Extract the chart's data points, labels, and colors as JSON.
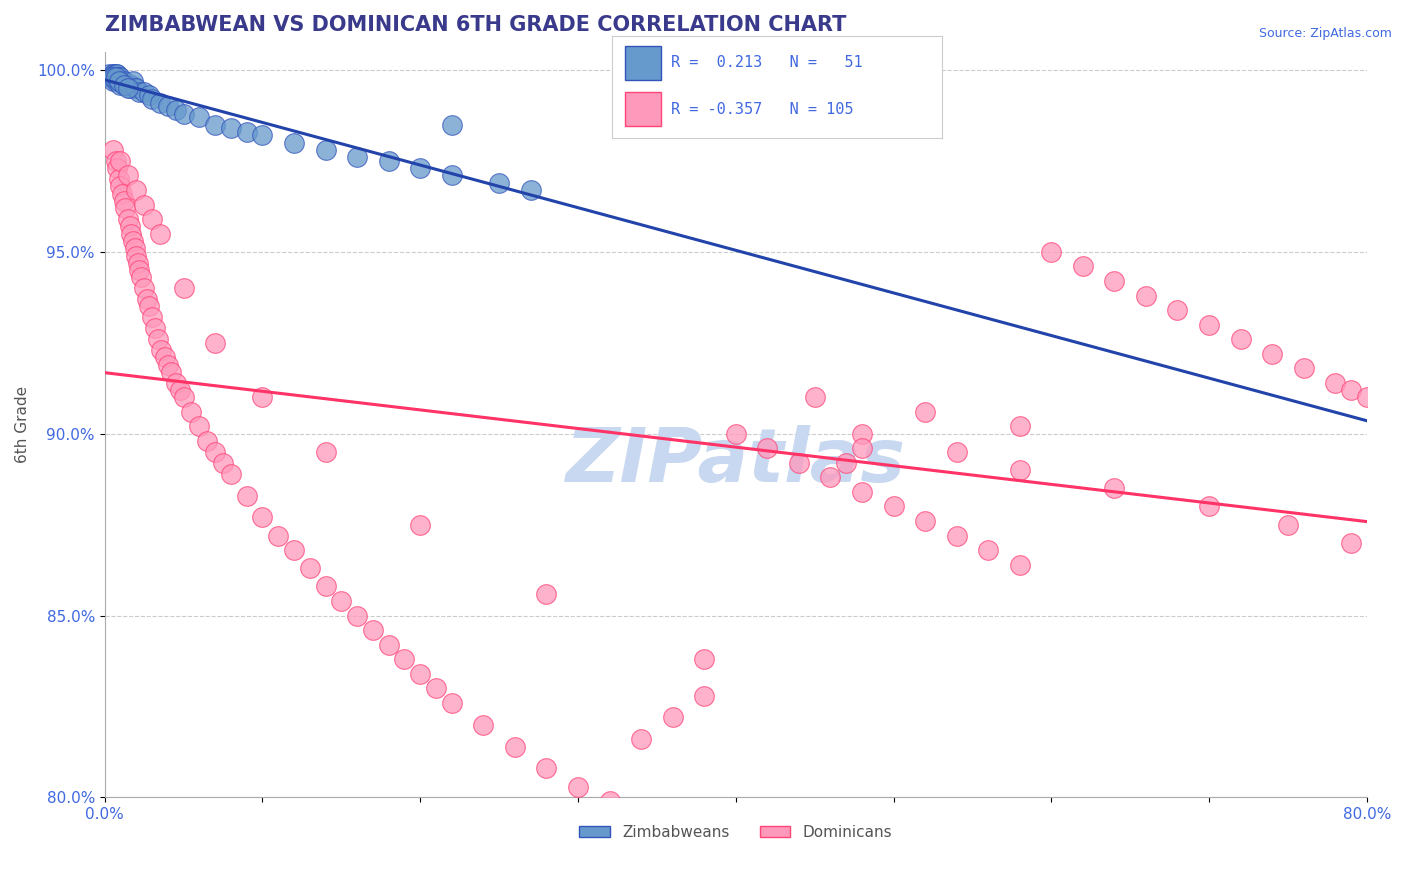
{
  "title": "ZIMBABWEAN VS DOMINICAN 6TH GRADE CORRELATION CHART",
  "source": "Source: ZipAtlas.com",
  "ylabel": "6th Grade",
  "x_min": 0.0,
  "x_max": 0.8,
  "y_min": 0.8,
  "y_max": 1.005,
  "x_ticks": [
    0.0,
    0.1,
    0.2,
    0.3,
    0.4,
    0.5,
    0.6,
    0.7,
    0.8
  ],
  "y_ticks": [
    0.8,
    0.85,
    0.9,
    0.95,
    1.0
  ],
  "y_tick_labels": [
    "80.0%",
    "85.0%",
    "90.0%",
    "95.0%",
    "100.0%"
  ],
  "grid_color": "#cccccc",
  "background_color": "#ffffff",
  "title_color": "#3a3a8c",
  "title_fontsize": 15,
  "axis_label_color": "#555555",
  "tick_label_color": "#4169e1",
  "source_color": "#4169e1",
  "zimbabwe_color": "#6699cc",
  "dominican_color": "#ff99bb",
  "zimbabwe_edge_color": "#3355bb",
  "dominican_edge_color": "#ff4477",
  "zimbabwe_line_color": "#2244aa",
  "dominican_line_color": "#ff3366",
  "watermark": "ZIPatlas",
  "watermark_color": "#c8d8f0",
  "legend_label1": "Zimbabweans",
  "legend_label2": "Dominicans",
  "zimbabwe_scatter_x": [
    0.003,
    0.004,
    0.005,
    0.005,
    0.006,
    0.006,
    0.007,
    0.007,
    0.008,
    0.008,
    0.009,
    0.009,
    0.01,
    0.01,
    0.011,
    0.012,
    0.013,
    0.014,
    0.015,
    0.016,
    0.017,
    0.018,
    0.019,
    0.02,
    0.022,
    0.025,
    0.028,
    0.03,
    0.035,
    0.04,
    0.045,
    0.05,
    0.06,
    0.07,
    0.08,
    0.09,
    0.1,
    0.12,
    0.14,
    0.16,
    0.18,
    0.2,
    0.22,
    0.25,
    0.27,
    0.005,
    0.007,
    0.009,
    0.012,
    0.015,
    0.22
  ],
  "zimbabwe_scatter_y": [
    0.999,
    0.998,
    0.999,
    0.997,
    0.999,
    0.998,
    0.999,
    0.997,
    0.999,
    0.998,
    0.998,
    0.997,
    0.998,
    0.996,
    0.997,
    0.997,
    0.996,
    0.996,
    0.996,
    0.995,
    0.996,
    0.997,
    0.995,
    0.995,
    0.994,
    0.994,
    0.993,
    0.992,
    0.991,
    0.99,
    0.989,
    0.988,
    0.987,
    0.985,
    0.984,
    0.983,
    0.982,
    0.98,
    0.978,
    0.976,
    0.975,
    0.973,
    0.971,
    0.969,
    0.967,
    0.998,
    0.998,
    0.997,
    0.996,
    0.995,
    0.985
  ],
  "dominican_scatter_x": [
    0.005,
    0.007,
    0.008,
    0.009,
    0.01,
    0.011,
    0.012,
    0.013,
    0.015,
    0.016,
    0.017,
    0.018,
    0.019,
    0.02,
    0.021,
    0.022,
    0.023,
    0.025,
    0.027,
    0.028,
    0.03,
    0.032,
    0.034,
    0.036,
    0.038,
    0.04,
    0.042,
    0.045,
    0.048,
    0.05,
    0.055,
    0.06,
    0.065,
    0.07,
    0.075,
    0.08,
    0.09,
    0.1,
    0.11,
    0.12,
    0.13,
    0.14,
    0.15,
    0.16,
    0.17,
    0.18,
    0.19,
    0.2,
    0.21,
    0.22,
    0.24,
    0.26,
    0.28,
    0.3,
    0.32,
    0.34,
    0.36,
    0.38,
    0.4,
    0.42,
    0.44,
    0.46,
    0.48,
    0.5,
    0.52,
    0.54,
    0.56,
    0.58,
    0.6,
    0.62,
    0.64,
    0.66,
    0.68,
    0.7,
    0.72,
    0.74,
    0.76,
    0.78,
    0.79,
    0.8,
    0.01,
    0.015,
    0.02,
    0.025,
    0.03,
    0.035,
    0.05,
    0.07,
    0.1,
    0.14,
    0.2,
    0.28,
    0.38,
    0.48,
    0.54,
    0.58,
    0.64,
    0.7,
    0.75,
    0.79,
    0.45,
    0.52,
    0.58,
    0.48,
    0.47
  ],
  "dominican_scatter_y": [
    0.978,
    0.975,
    0.973,
    0.97,
    0.968,
    0.966,
    0.964,
    0.962,
    0.959,
    0.957,
    0.955,
    0.953,
    0.951,
    0.949,
    0.947,
    0.945,
    0.943,
    0.94,
    0.937,
    0.935,
    0.932,
    0.929,
    0.926,
    0.923,
    0.921,
    0.919,
    0.917,
    0.914,
    0.912,
    0.91,
    0.906,
    0.902,
    0.898,
    0.895,
    0.892,
    0.889,
    0.883,
    0.877,
    0.872,
    0.868,
    0.863,
    0.858,
    0.854,
    0.85,
    0.846,
    0.842,
    0.838,
    0.834,
    0.83,
    0.826,
    0.82,
    0.814,
    0.808,
    0.803,
    0.799,
    0.816,
    0.822,
    0.828,
    0.9,
    0.896,
    0.892,
    0.888,
    0.884,
    0.88,
    0.876,
    0.872,
    0.868,
    0.864,
    0.95,
    0.946,
    0.942,
    0.938,
    0.934,
    0.93,
    0.926,
    0.922,
    0.918,
    0.914,
    0.912,
    0.91,
    0.975,
    0.971,
    0.967,
    0.963,
    0.959,
    0.955,
    0.94,
    0.925,
    0.91,
    0.895,
    0.875,
    0.856,
    0.838,
    0.9,
    0.895,
    0.89,
    0.885,
    0.88,
    0.875,
    0.87,
    0.91,
    0.906,
    0.902,
    0.896,
    0.892
  ]
}
